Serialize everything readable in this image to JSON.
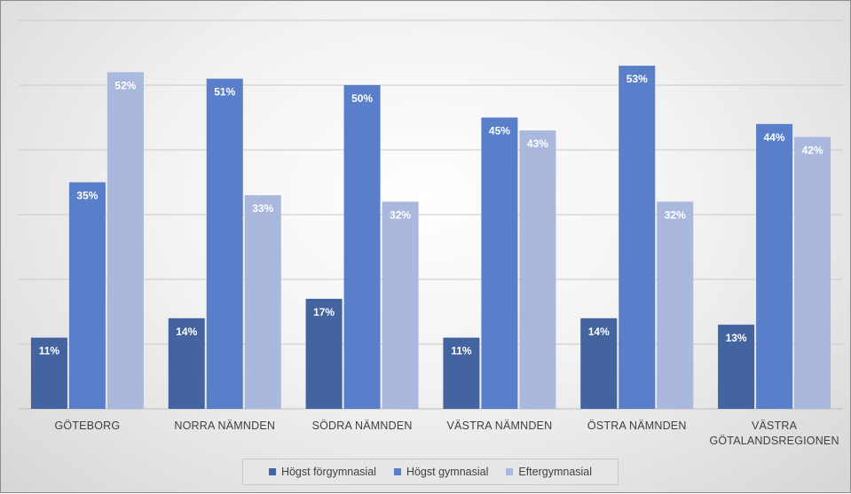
{
  "chart_data": {
    "type": "bar",
    "categories": [
      "GÖTEBORG",
      "NORRA NÄMNDEN",
      "SÖDRA NÄMNDEN",
      "VÄSTRA NÄMNDEN",
      "ÖSTRA NÄMNDEN",
      "VÄSTRA GÖTALANDSREGIONEN"
    ],
    "category_lines": [
      [
        "GÖTEBORG"
      ],
      [
        "NORRA NÄMNDEN"
      ],
      [
        "SÖDRA NÄMNDEN"
      ],
      [
        "VÄSTRA NÄMNDEN"
      ],
      [
        "ÖSTRA NÄMNDEN"
      ],
      [
        "VÄSTRA",
        "GÖTALANDSREGIONEN"
      ]
    ],
    "series": [
      {
        "name": "Högst förgymnasial",
        "color": "#44649f",
        "values": [
          11,
          14,
          17,
          11,
          14,
          13
        ],
        "labels": [
          "11%",
          "14%",
          "17%",
          "11%",
          "14%",
          "13%"
        ]
      },
      {
        "name": "Högst gymnasial",
        "color": "#5a7fca",
        "values": [
          35,
          51,
          50,
          45,
          53,
          44
        ],
        "labels": [
          "35%",
          "51%",
          "50%",
          "45%",
          "53%",
          "44%"
        ]
      },
      {
        "name": "Eftergymnasial",
        "color": "#a9b8dc",
        "values": [
          52,
          33,
          32,
          43,
          32,
          42
        ],
        "labels": [
          "52%",
          "33%",
          "32%",
          "43%",
          "32%",
          "42%"
        ]
      }
    ],
    "title": "",
    "xlabel": "",
    "ylabel": "",
    "ylim": [
      0,
      60
    ],
    "grid": true,
    "legend": "bottom"
  }
}
